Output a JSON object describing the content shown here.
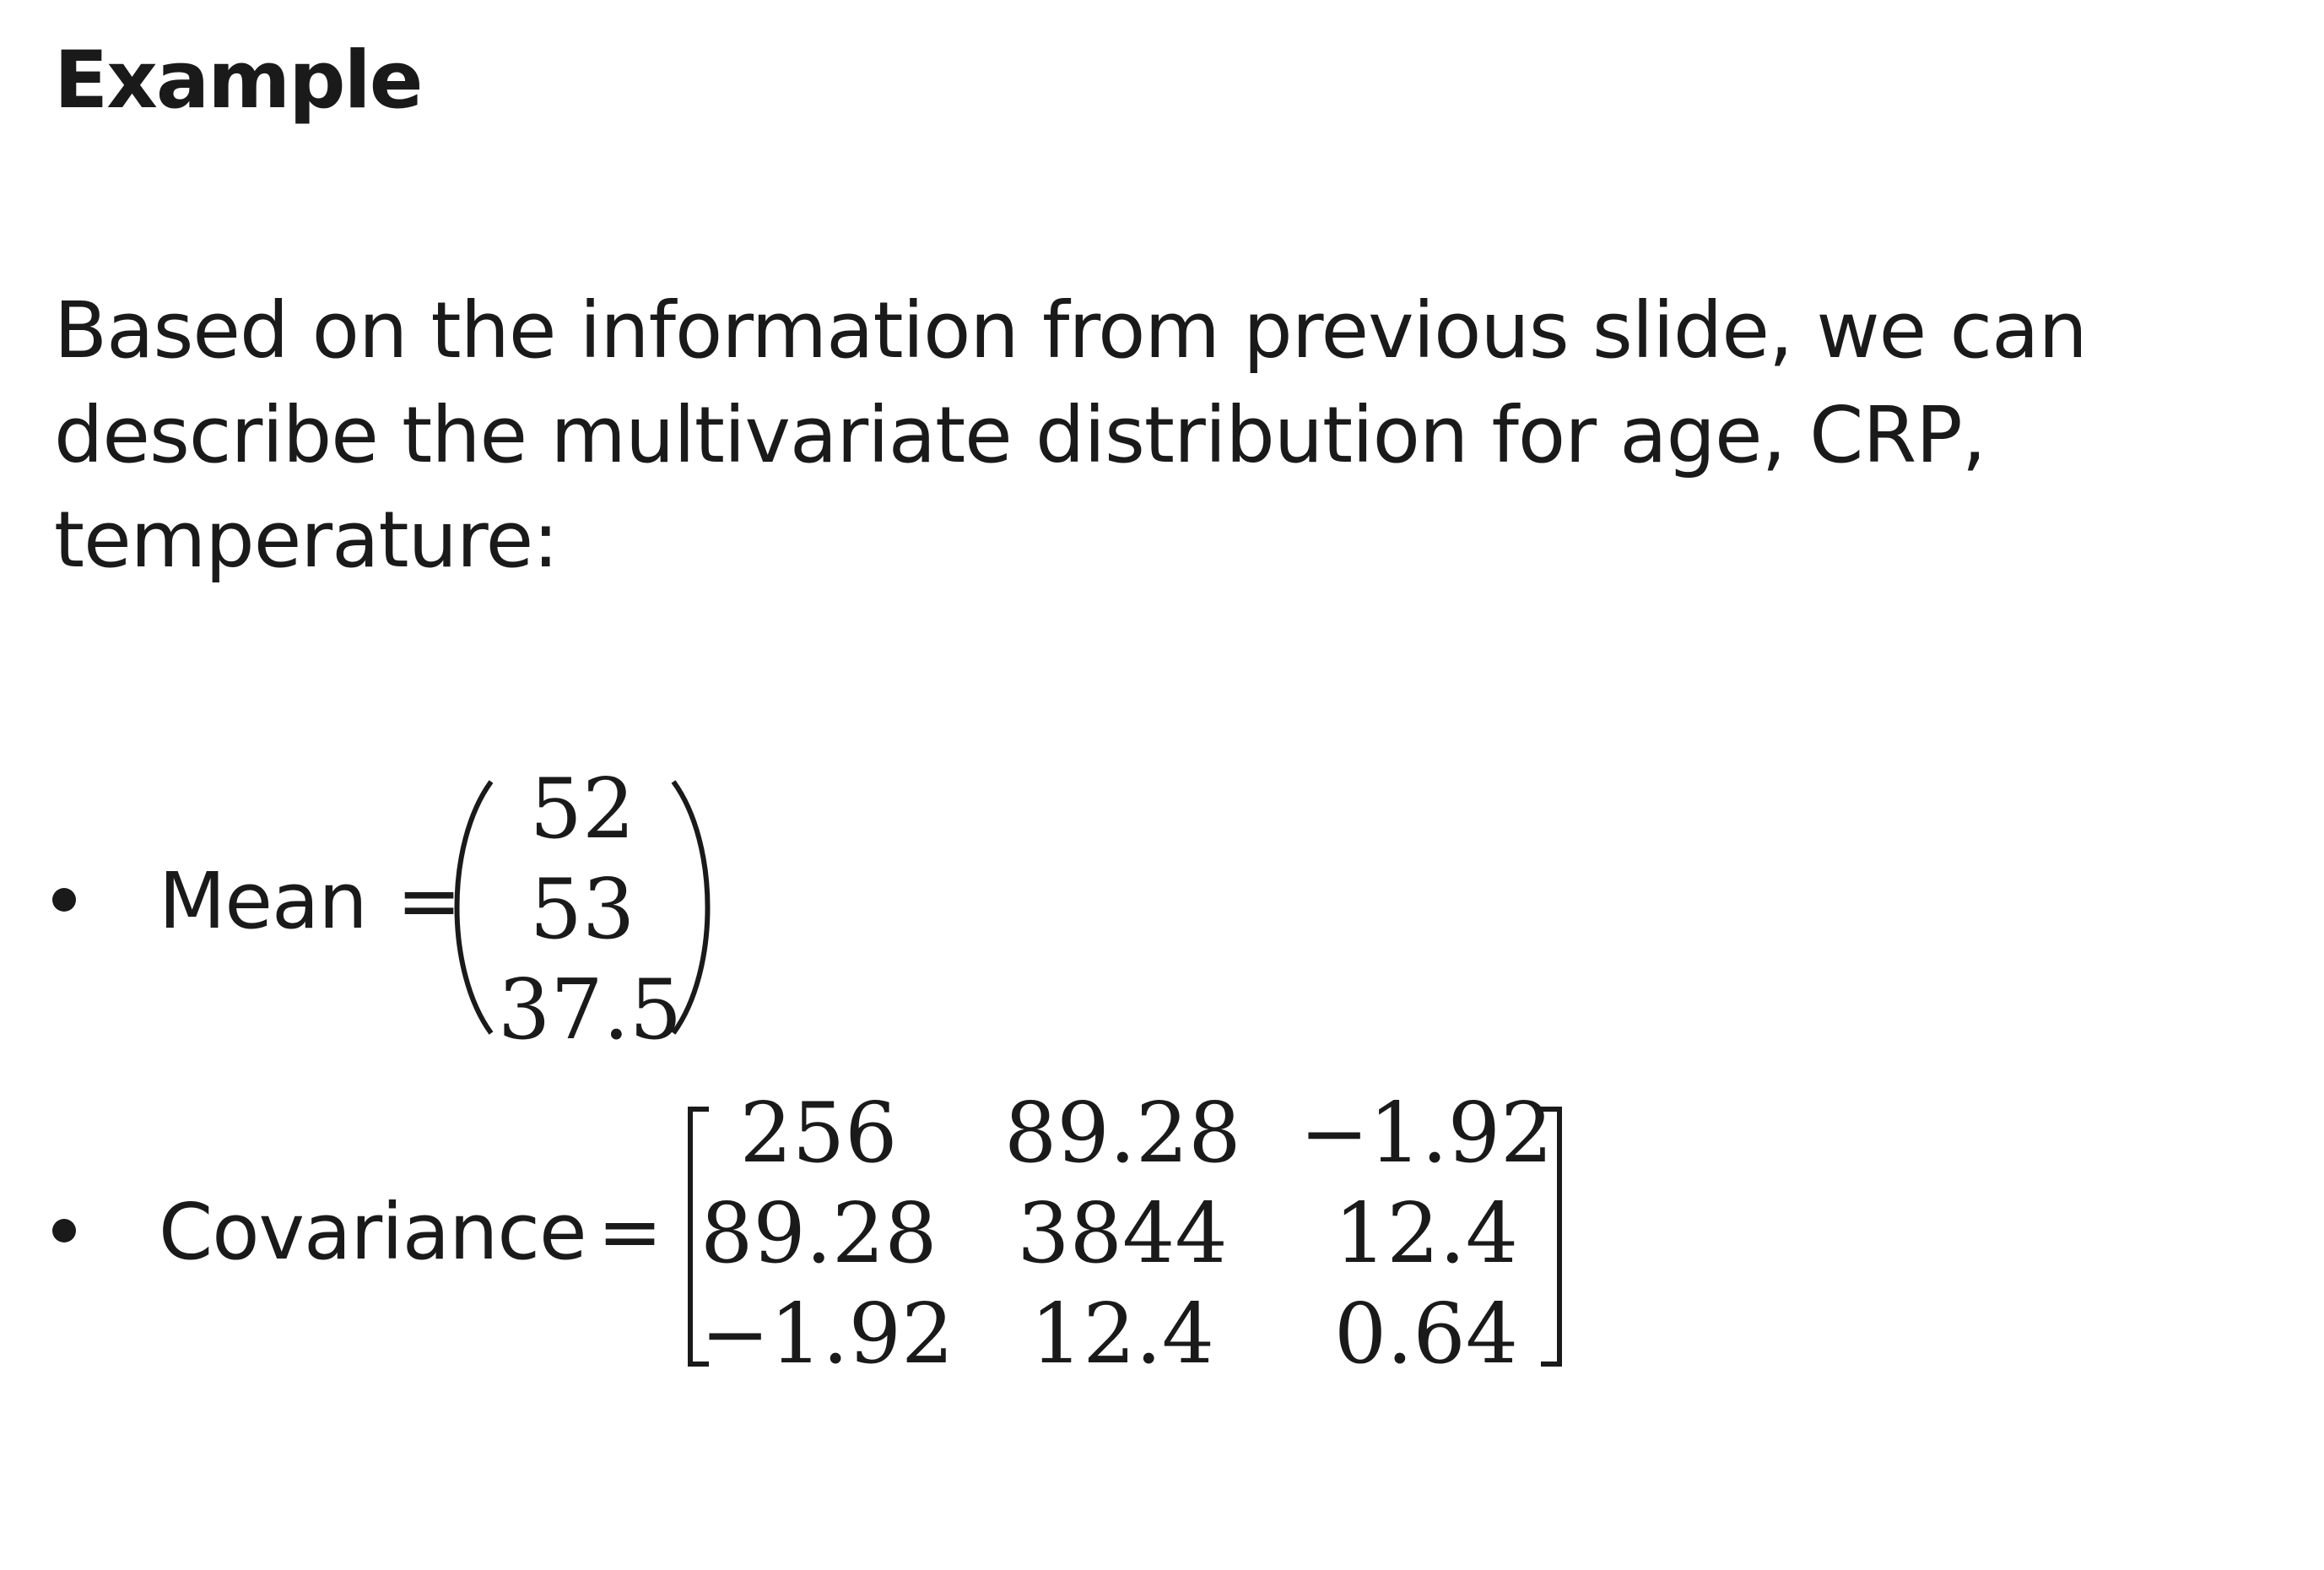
{
  "title": "Example",
  "paragraph": {
    "lines": [
      "Based on the information from previous slide, we can",
      "describe the multivariate distribution for age, CRP,",
      "temperature:"
    ]
  },
  "mean": {
    "label": "Mean",
    "equals": "=",
    "values": [
      "52",
      "53",
      "37.5"
    ]
  },
  "covariance": {
    "label": "Covariance",
    "equals": "=",
    "rows": [
      [
        "256",
        "89.28",
        "−1.92"
      ],
      [
        "89.28",
        "3844",
        "12.4"
      ],
      [
        "−1.92",
        "12.4",
        "0.64"
      ]
    ]
  }
}
